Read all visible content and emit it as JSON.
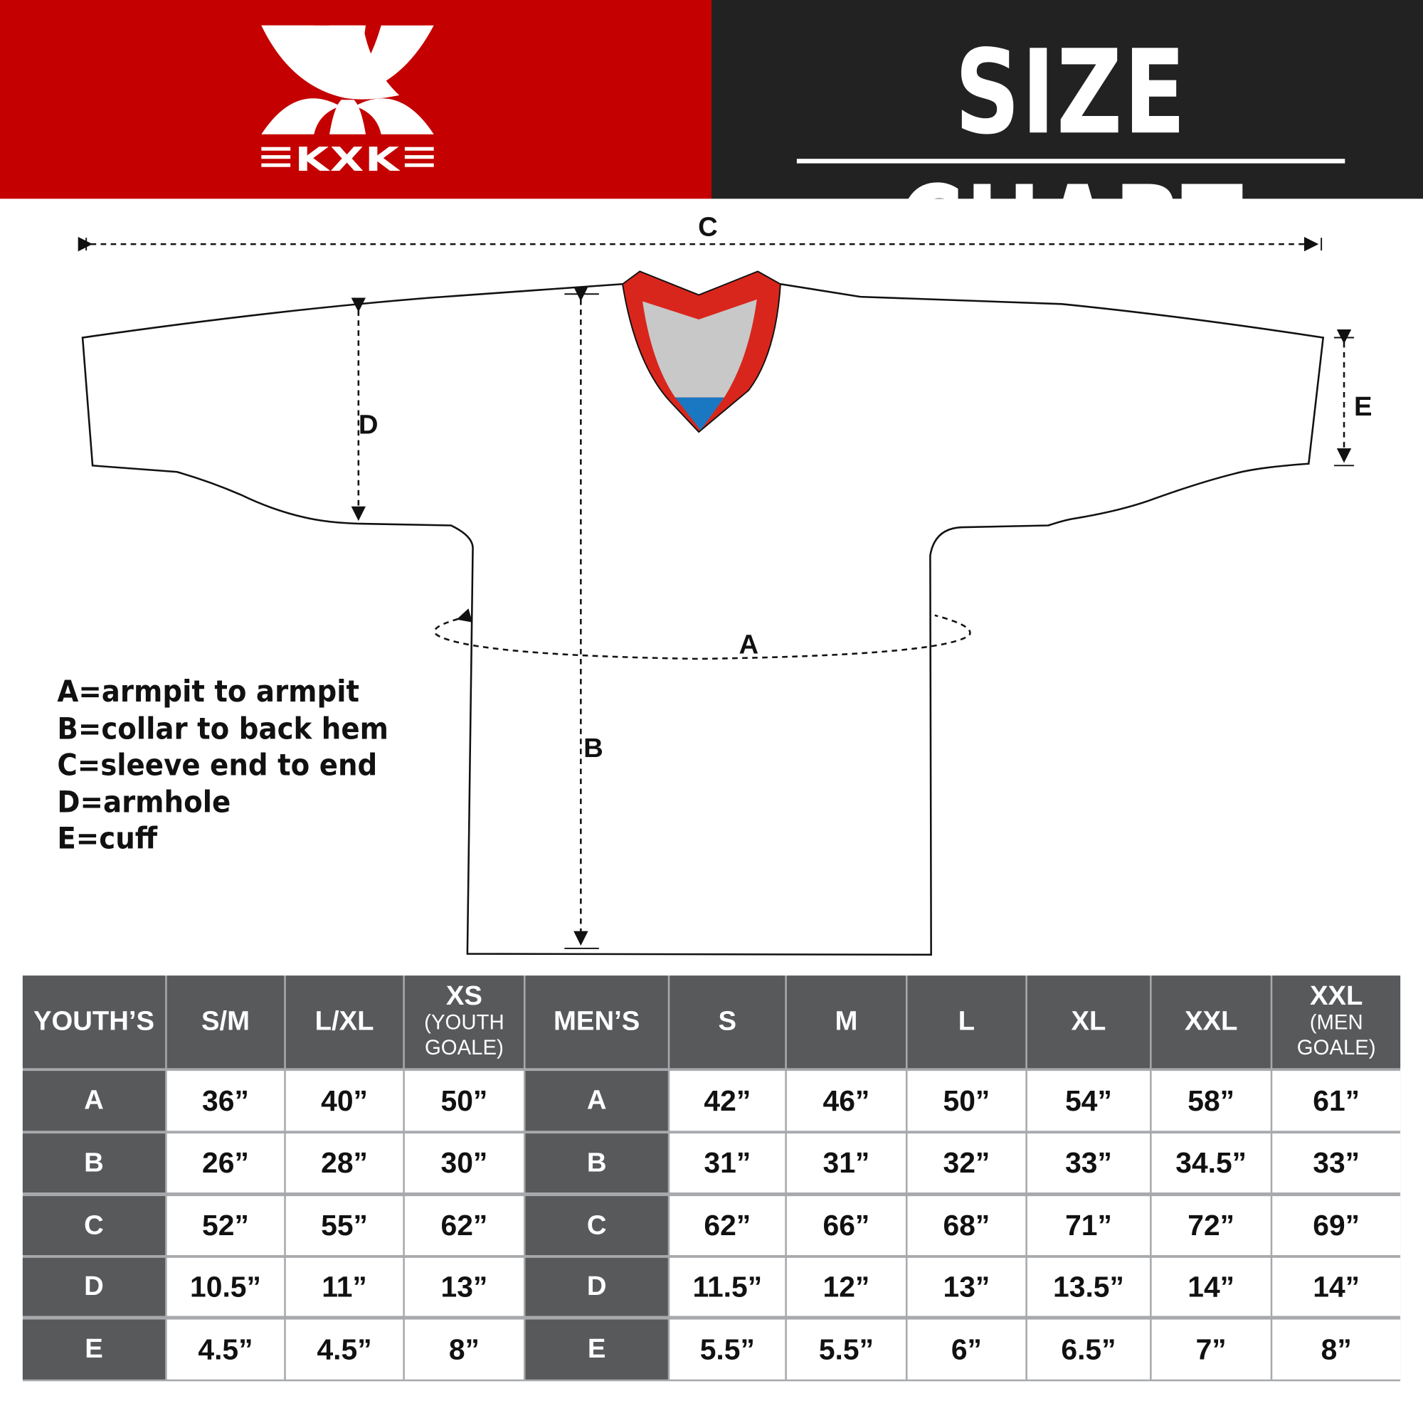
{
  "header": {
    "brand": "KXK",
    "title": "SIZE CHART",
    "colors": {
      "brand_red": "#c40000",
      "title_bg": "#222222",
      "table_header": "#58595b",
      "table_grid": "#a7a9ac",
      "collar_red": "#d9261c",
      "collar_gray": "#c8c8c8",
      "collar_blue": "#1a78c2"
    }
  },
  "diagram": {
    "labels": {
      "a": "A",
      "b": "B",
      "c": "C",
      "d": "D",
      "e": "E"
    }
  },
  "legend": [
    "A=armpit to armpit",
    "B=collar to back hem",
    "C=sleeve end to end",
    "D=armhole",
    "E=cuff"
  ],
  "table": {
    "youth": {
      "group_label": "YOUTH’S",
      "sizes": [
        {
          "main": "S/M",
          "sub": ""
        },
        {
          "main": "L/XL",
          "sub": ""
        },
        {
          "main": "XS",
          "sub": "(YOUTH GOALE)"
        }
      ]
    },
    "men": {
      "group_label": "MEN’S",
      "sizes": [
        {
          "main": "S",
          "sub": ""
        },
        {
          "main": "M",
          "sub": ""
        },
        {
          "main": "L",
          "sub": ""
        },
        {
          "main": "XL",
          "sub": ""
        },
        {
          "main": "XXL",
          "sub": ""
        },
        {
          "main": "XXL",
          "sub": "(MEN GOALE)"
        }
      ]
    },
    "rows": [
      {
        "label": "A",
        "youth": [
          "36”",
          "40”",
          "50”"
        ],
        "men": [
          "42”",
          "46”",
          "50”",
          "54”",
          "58”",
          "61”"
        ]
      },
      {
        "label": "B",
        "youth": [
          "26”",
          "28”",
          "30”"
        ],
        "men": [
          "31”",
          "31”",
          "32”",
          "33”",
          "34.5”",
          "33”"
        ]
      },
      {
        "label": "C",
        "youth": [
          "52”",
          "55”",
          "62”"
        ],
        "men": [
          "62”",
          "66”",
          "68”",
          "71”",
          "72”",
          "69”"
        ]
      },
      {
        "label": "D",
        "youth": [
          "10.5”",
          "11”",
          "13”"
        ],
        "men": [
          "11.5”",
          "12”",
          "13”",
          "13.5”",
          "14”",
          "14”"
        ]
      },
      {
        "label": "E",
        "youth": [
          "4.5”",
          "4.5”",
          "8”"
        ],
        "men": [
          "5.5”",
          "5.5”",
          "6”",
          "6.5”",
          "7”",
          "8”"
        ]
      }
    ]
  }
}
